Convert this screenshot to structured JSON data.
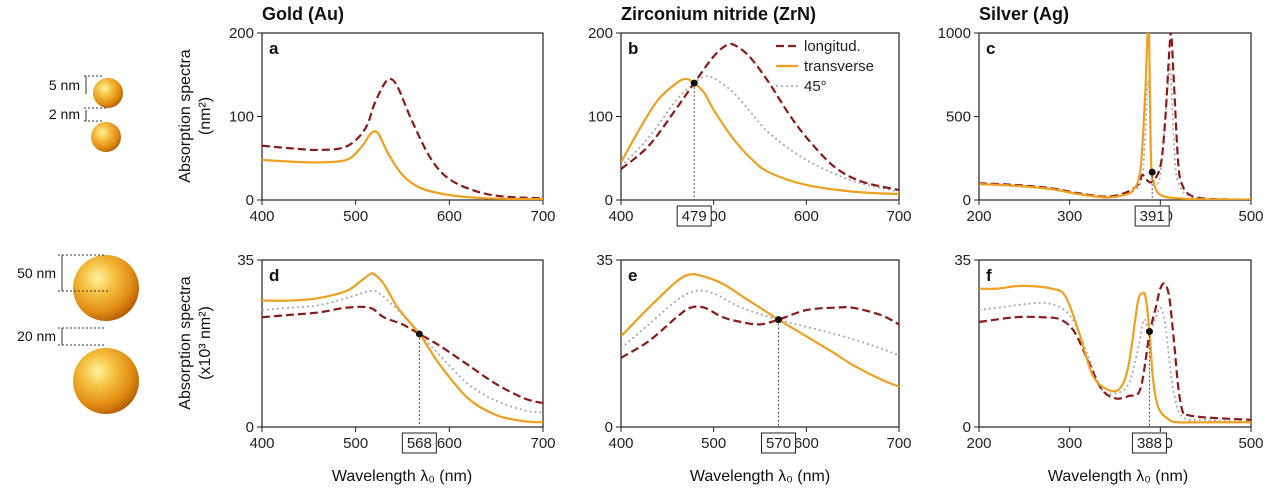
{
  "materials": [
    "Gold  (Au)",
    "Zirconium nitride  (ZrN)",
    "Silver  (Ag)"
  ],
  "ylabel_top": "Absorption spectra",
  "ylabel_top_unit": "(nm²)",
  "ylabel_bottom": "Absorption spectra",
  "ylabel_bottom_unit": "(x10³ nm²)",
  "xlabel": "Wavelength λ₀ (nm)",
  "dim_labels_top": [
    "5 nm",
    "2 nm"
  ],
  "dim_labels_bottom": [
    "50 nm",
    "20 nm"
  ],
  "legend": [
    "longitud.",
    "transverse",
    "45°"
  ],
  "colors": {
    "longitud": "#8b1a1a",
    "transverse": "#f0a020",
    "deg45": "#aaaaaa"
  },
  "chart_data": [
    {
      "panel": "a",
      "type": "line",
      "title": "Gold  (Au)",
      "xlim": [
        400,
        700
      ],
      "ylim": [
        0,
        200
      ],
      "xticks": [
        400,
        500,
        600,
        700
      ],
      "yticks": [
        0,
        100,
        200
      ],
      "series": [
        {
          "name": "longitud.",
          "x": [
            400,
            430,
            460,
            490,
            510,
            520,
            530,
            537,
            545,
            560,
            580,
            600,
            630,
            660,
            700
          ],
          "y": [
            65,
            62,
            60,
            64,
            85,
            115,
            138,
            145,
            135,
            95,
            50,
            25,
            10,
            4,
            2
          ]
        },
        {
          "name": "transverse",
          "x": [
            400,
            430,
            460,
            490,
            505,
            515,
            520,
            525,
            535,
            550,
            570,
            600,
            640,
            700
          ],
          "y": [
            48,
            46,
            45,
            48,
            62,
            78,
            82,
            78,
            55,
            30,
            14,
            6,
            2,
            1
          ]
        }
      ]
    },
    {
      "panel": "b",
      "type": "line",
      "title": "Zirconium nitride  (ZrN)",
      "xlim": [
        400,
        700
      ],
      "ylim": [
        0,
        200
      ],
      "xticks": [
        400,
        500,
        600,
        700
      ],
      "yticks": [
        0,
        100,
        200
      ],
      "marker": 479,
      "series": [
        {
          "name": "longitud.",
          "x": [
            400,
            430,
            460,
            479,
            500,
            515,
            525,
            540,
            560,
            580,
            600,
            630,
            660,
            700
          ],
          "y": [
            37,
            65,
            110,
            140,
            172,
            186,
            184,
            170,
            140,
            105,
            75,
            40,
            22,
            12
          ]
        },
        {
          "name": "transverse",
          "x": [
            400,
            420,
            440,
            460,
            470,
            479,
            490,
            500,
            520,
            540,
            560,
            600,
            650,
            700
          ],
          "y": [
            45,
            85,
            120,
            140,
            145,
            140,
            128,
            108,
            75,
            50,
            33,
            18,
            10,
            7
          ]
        },
        {
          "name": "45°",
          "x": [
            400,
            430,
            460,
            479,
            490,
            500,
            520,
            540,
            560,
            600,
            650,
            700
          ],
          "y": [
            40,
            75,
            120,
            140,
            148,
            146,
            130,
            105,
            80,
            48,
            23,
            10
          ]
        }
      ]
    },
    {
      "panel": "c",
      "type": "line",
      "title": "Silver  (Ag)",
      "xlim": [
        200,
        500
      ],
      "ylim": [
        0,
        1000
      ],
      "xticks": [
        200,
        300,
        400,
        500
      ],
      "yticks": [
        0,
        500,
        1000
      ],
      "marker": 391,
      "series": [
        {
          "name": "longitud.",
          "x": [
            200,
            240,
            280,
            310,
            340,
            360,
            375,
            380,
            385,
            391,
            400,
            405,
            410,
            412,
            415,
            420,
            425,
            430,
            440,
            460,
            500
          ],
          "y": [
            100,
            90,
            70,
            40,
            20,
            40,
            90,
            150,
            120,
            110,
            200,
            450,
            900,
            1000,
            700,
            200,
            80,
            40,
            15,
            5,
            2
          ]
        },
        {
          "name": "transverse",
          "x": [
            200,
            240,
            280,
            310,
            340,
            360,
            370,
            378,
            383,
            386,
            387.5,
            388.5,
            390,
            393,
            398,
            410,
            440,
            500
          ],
          "y": [
            95,
            85,
            65,
            35,
            15,
            30,
            60,
            180,
            600,
            1000,
            1000,
            650,
            200,
            100,
            40,
            15,
            5,
            2
          ]
        },
        {
          "name": "45°",
          "x": [
            200,
            240,
            280,
            310,
            340,
            360,
            378,
            383,
            386,
            388,
            390,
            395,
            400,
            405,
            410,
            412,
            415,
            420,
            440,
            500
          ],
          "y": [
            98,
            88,
            68,
            38,
            18,
            35,
            100,
            350,
            700,
            600,
            200,
            100,
            150,
            450,
            800,
            700,
            350,
            100,
            10,
            2
          ]
        }
      ]
    },
    {
      "panel": "d",
      "type": "line",
      "xlim": [
        400,
        700
      ],
      "ylim": [
        0,
        35
      ],
      "xticks": [
        400,
        500,
        600,
        700
      ],
      "yticks": [
        0,
        35
      ],
      "marker": 568,
      "series": [
        {
          "name": "longitud.",
          "x": [
            400,
            430,
            460,
            490,
            515,
            530,
            550,
            568,
            590,
            620,
            650,
            680,
            700
          ],
          "y": [
            23,
            23.5,
            24,
            25,
            25,
            23,
            21.5,
            19.5,
            17,
            13,
            9,
            6,
            5
          ]
        },
        {
          "name": "transverse",
          "x": [
            400,
            430,
            460,
            490,
            505,
            515,
            520,
            530,
            545,
            568,
            590,
            620,
            650,
            680,
            700
          ],
          "y": [
            26.5,
            26.5,
            27,
            28.5,
            30.5,
            32,
            32,
            30,
            25,
            19.5,
            13,
            6,
            2.5,
            1.2,
            1
          ]
        },
        {
          "name": "45°",
          "x": [
            400,
            430,
            460,
            490,
            515,
            525,
            545,
            568,
            590,
            620,
            650,
            680,
            700
          ],
          "y": [
            24.5,
            25,
            25.5,
            27,
            28.5,
            28,
            24.5,
            19.5,
            15,
            9,
            5.5,
            3.5,
            3
          ]
        }
      ]
    },
    {
      "panel": "e",
      "type": "line",
      "xlim": [
        400,
        700
      ],
      "ylim": [
        0,
        35
      ],
      "xticks": [
        400,
        500,
        600,
        700
      ],
      "yticks": [
        0,
        35
      ],
      "marker": 570,
      "series": [
        {
          "name": "longitud.",
          "x": [
            400,
            430,
            460,
            475,
            490,
            510,
            530,
            550,
            570,
            600,
            630,
            650,
            680,
            700
          ],
          "y": [
            14.5,
            18,
            23,
            25,
            25,
            23,
            22,
            21.5,
            22.5,
            24.5,
            25,
            25,
            23.5,
            21.5
          ]
        },
        {
          "name": "transverse",
          "x": [
            400,
            430,
            460,
            475,
            490,
            510,
            530,
            550,
            570,
            600,
            630,
            650,
            680,
            700
          ],
          "y": [
            19,
            25,
            30.5,
            32,
            31.5,
            30,
            27.5,
            25,
            22.5,
            19,
            15.5,
            13,
            10,
            8.5
          ]
        },
        {
          "name": "45°",
          "x": [
            400,
            430,
            460,
            480,
            500,
            530,
            570,
            600,
            640,
            680,
            700
          ],
          "y": [
            16.5,
            21.5,
            26.5,
            28.5,
            28,
            25,
            22.5,
            21,
            19,
            16.5,
            15
          ]
        }
      ]
    },
    {
      "panel": "f",
      "type": "line",
      "xlim": [
        200,
        500
      ],
      "ylim": [
        0,
        35
      ],
      "xticks": [
        200,
        300,
        400,
        500
      ],
      "yticks": [
        0,
        35
      ],
      "marker": 388,
      "series": [
        {
          "name": "longitud.",
          "x": [
            200,
            240,
            270,
            290,
            305,
            320,
            335,
            350,
            365,
            378,
            388,
            395,
            400,
            405,
            410,
            415,
            420,
            425,
            430,
            450,
            500
          ],
          "y": [
            22,
            23,
            23,
            22.5,
            20,
            14,
            8,
            6,
            6.5,
            8,
            19.5,
            25,
            29,
            30,
            27,
            18,
            8,
            3,
            2.5,
            2,
            1.5
          ]
        },
        {
          "name": "transverse",
          "x": [
            200,
            220,
            240,
            260,
            280,
            295,
            310,
            325,
            340,
            355,
            365,
            375,
            380,
            384,
            388,
            392,
            398,
            410,
            420,
            450,
            500
          ],
          "y": [
            29,
            29,
            29.5,
            29.5,
            29,
            27.5,
            20,
            11,
            8,
            8,
            13,
            26,
            28,
            27,
            20,
            10,
            4,
            1.5,
            1,
            1,
            1
          ]
        },
        {
          "name": "45°",
          "x": [
            200,
            240,
            270,
            290,
            305,
            320,
            335,
            350,
            365,
            375,
            382,
            388,
            395,
            400,
            405,
            410,
            415,
            425,
            450,
            500
          ],
          "y": [
            24.5,
            25.5,
            26,
            25,
            22,
            15,
            8,
            7,
            9,
            16,
            22.5,
            20,
            23,
            25,
            22,
            14,
            7,
            2,
            1.5,
            1
          ]
        }
      ]
    }
  ]
}
